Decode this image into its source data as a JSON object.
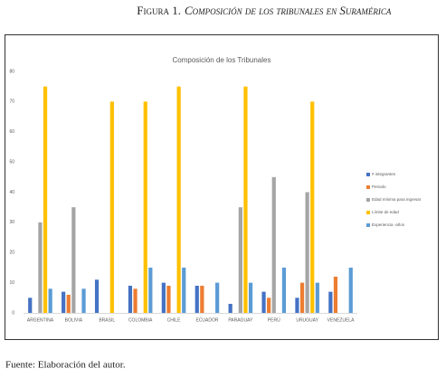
{
  "caption_label": "Figura 1.",
  "caption_title": "Composición de los tribunales en Suramérica",
  "source": "Fuente: Elaboración del autor.",
  "chart_data": {
    "type": "bar",
    "title": "Composición de los Tribunales",
    "categories": [
      "ARGENTINA",
      "BOLIVIA",
      "BRASIL",
      "COLOMBIA",
      "CHILE",
      "ECUADOR",
      "PARAGUAY",
      "PERÚ",
      "URUGUAY",
      "VENEZUELA"
    ],
    "series": [
      {
        "name": "# integrantes",
        "color": "#4472c4",
        "values": [
          5,
          7,
          11,
          9,
          10,
          9,
          3,
          7,
          5,
          7
        ]
      },
      {
        "name": "Periodo",
        "color": "#ed7d31",
        "values": [
          null,
          6,
          null,
          8,
          9,
          9,
          null,
          5,
          10,
          12
        ]
      },
      {
        "name": "Edad mínima para ingresar",
        "color": "#a5a5a5",
        "values": [
          30,
          35,
          null,
          null,
          null,
          null,
          35,
          45,
          40,
          null
        ]
      },
      {
        "name": "Límite de edad",
        "color": "#ffc000",
        "values": [
          75,
          null,
          70,
          70,
          75,
          null,
          75,
          null,
          70,
          null
        ]
      },
      {
        "name": "Experiencia -años",
        "color": "#5b9bd5",
        "values": [
          8,
          8,
          null,
          15,
          15,
          10,
          10,
          15,
          10,
          15
        ]
      }
    ],
    "ylim": [
      0,
      80
    ],
    "yticks": [
      0,
      10,
      20,
      30,
      40,
      50,
      60,
      70,
      80
    ],
    "grid": false,
    "legend": "right"
  }
}
